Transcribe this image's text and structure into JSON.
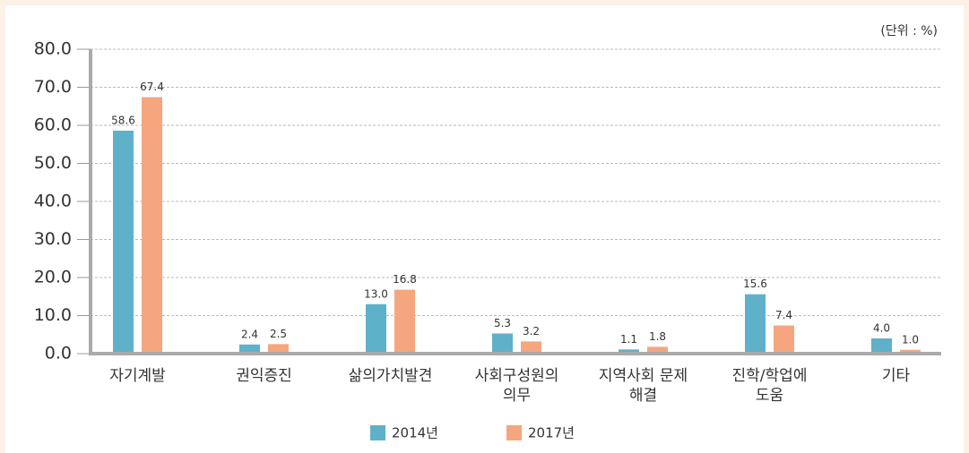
{
  "chart_data": {
    "type": "bar",
    "annotation": "(단위 : %)",
    "categories": [
      "자기계발",
      "권익증진",
      "삶의가치발견",
      "사회구성원의\n의무",
      "지역사회 문제\n해결",
      "진학/학업에\n도움",
      "기타"
    ],
    "series": [
      {
        "name": "2014년",
        "color": "#5fb1c9",
        "values": [
          58.6,
          2.4,
          13.0,
          5.3,
          1.1,
          15.6,
          4.0
        ],
        "value_labels": [
          "58.6",
          "2.4",
          "13.0",
          "5.3",
          "1.1",
          "15.6",
          "4.0"
        ]
      },
      {
        "name": "2017년",
        "color": "#f5a67f",
        "values": [
          67.4,
          2.5,
          16.8,
          3.2,
          1.8,
          7.4,
          1.0
        ],
        "value_labels": [
          "67.4",
          "2.5",
          "16.8",
          "3.2",
          "1.8",
          "7.4",
          "1.0"
        ]
      }
    ],
    "ylim": [
      0,
      80
    ],
    "yticks": [
      {
        "value": 0,
        "label": "0.0"
      },
      {
        "value": 10,
        "label": "10.0"
      },
      {
        "value": 20,
        "label": "20.0"
      },
      {
        "value": 30,
        "label": "30.0"
      },
      {
        "value": 40,
        "label": "40.0"
      },
      {
        "value": 50,
        "label": "50.0"
      },
      {
        "value": 60,
        "label": "60.0"
      },
      {
        "value": 70,
        "label": "70.0"
      },
      {
        "value": 80,
        "label": "80.0"
      }
    ],
    "grid": true
  }
}
